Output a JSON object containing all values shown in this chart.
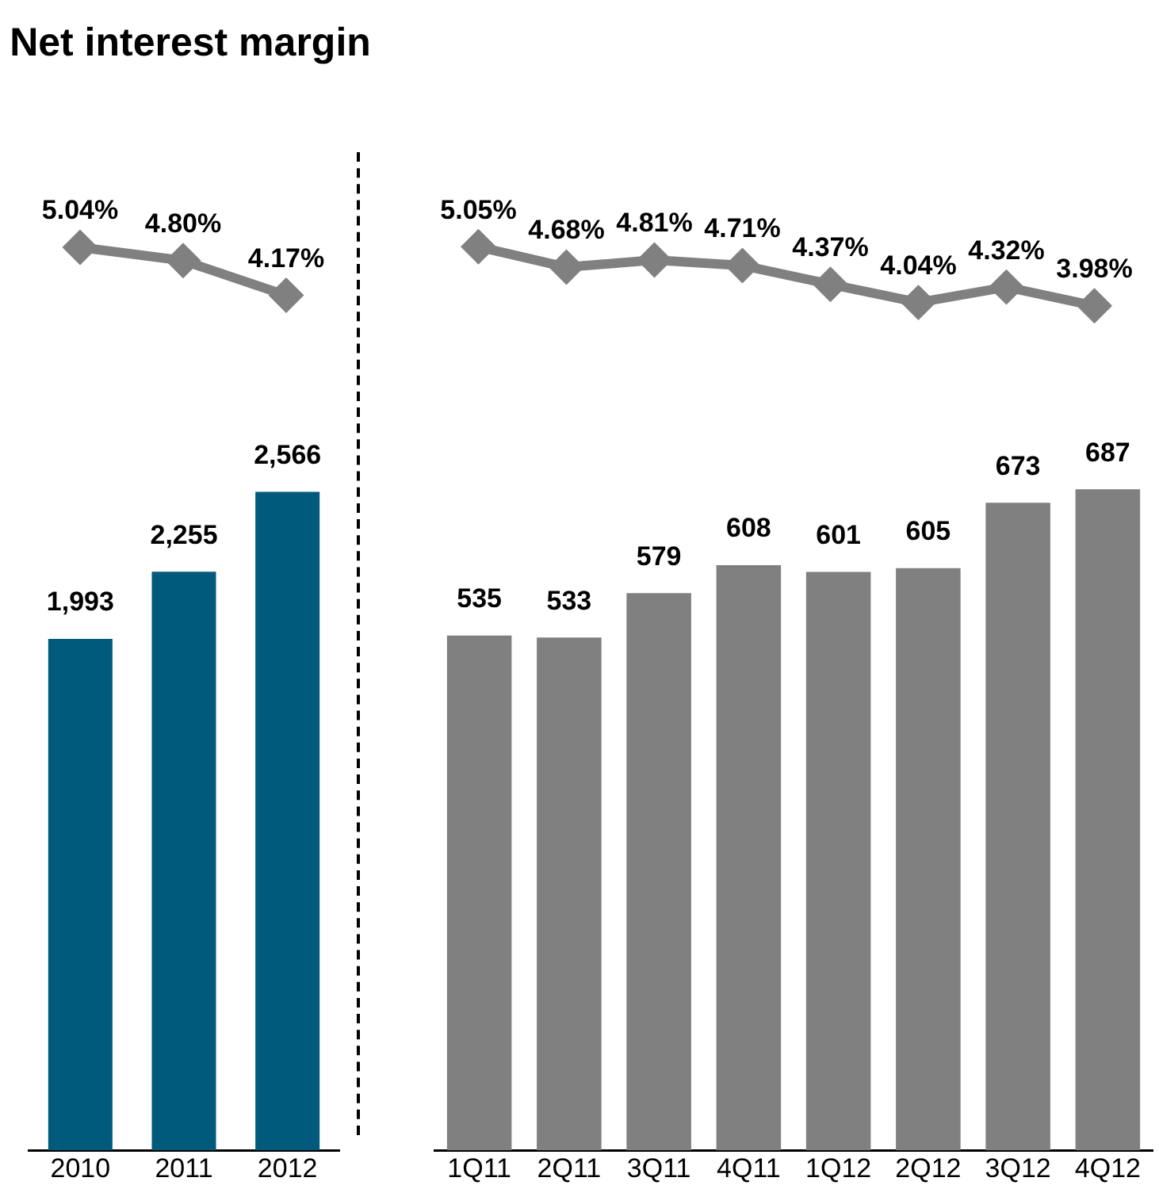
{
  "chart_data": [
    {
      "type": "line",
      "title": "Net interest margin",
      "categories": [
        null,
        null,
        null
      ],
      "marker": "diamond",
      "tick_labels": false,
      "series": [
        {
          "color": "#808080",
          "values": [
            5.04,
            4.8,
            4.17
          ],
          "value_labels": [
            "5.04%",
            "4.80%",
            "4.17%"
          ]
        }
      ]
    },
    {
      "type": "bar",
      "categories": [
        "2010",
        "2011",
        "2012"
      ],
      "tick_labels": "x",
      "series": [
        {
          "type": "bar",
          "color": "#005a7c",
          "values": [
            1993,
            2255,
            2566
          ],
          "value_labels": [
            "1,993",
            "2,255",
            "2,566"
          ]
        }
      ]
    },
    {
      "type": "line",
      "categories": [
        null,
        null,
        null,
        null,
        null,
        null,
        null,
        null
      ],
      "marker": "diamond",
      "tick_labels": false,
      "series": [
        {
          "color": "#808080",
          "values": [
            5.05,
            4.68,
            4.81,
            4.71,
            4.37,
            4.04,
            4.32,
            3.98
          ],
          "value_labels": [
            "5.05%",
            "4.68%",
            "4.81%",
            "4.71%",
            "4.37%",
            "4.04%",
            "4.32%",
            "3.98%"
          ]
        }
      ]
    },
    {
      "type": "bar",
      "categories": [
        "1Q11",
        "2Q11",
        "3Q11",
        "4Q11",
        "1Q12",
        "2Q12",
        "3Q12",
        "4Q12"
      ],
      "tick_labels": "x",
      "series": [
        {
          "type": "bar",
          "color": "#808080",
          "values": [
            535,
            533,
            579,
            608,
            601,
            605,
            673,
            687
          ],
          "value_labels": [
            "535",
            "533",
            "579",
            "608",
            "601",
            "605",
            "673",
            "687"
          ]
        }
      ]
    }
  ]
}
